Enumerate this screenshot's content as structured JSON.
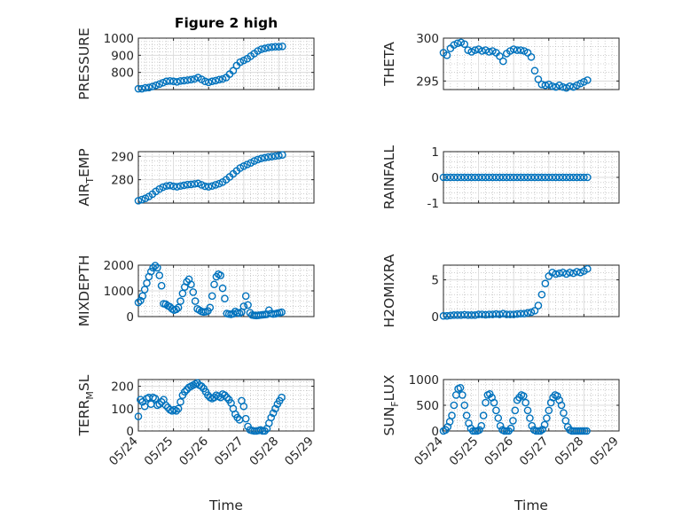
{
  "figure": {
    "title": "Figure 2 high",
    "marker_color": "#0072BD",
    "axis_color": "#262626",
    "grid": true,
    "minor_grid": true
  },
  "x_axis": {
    "label": "Time",
    "range": [
      "05/24",
      "05/29"
    ],
    "tick_labels": [
      "05/24",
      "05/25",
      "05/26",
      "05/27",
      "05/28",
      "05/29"
    ]
  },
  "chart_data": [
    {
      "type": "scatter",
      "ylabel": "PRESSURE",
      "title": "Figure 2 high",
      "ylim": [
        700,
        1000
      ],
      "yticks": [
        800,
        900,
        1000
      ],
      "x": [
        0.0,
        0.1,
        0.2,
        0.3,
        0.4,
        0.5,
        0.6,
        0.7,
        0.8,
        0.9,
        1.0,
        1.1,
        1.2,
        1.3,
        1.4,
        1.5,
        1.6,
        1.7,
        1.8,
        1.9,
        2.0,
        2.1,
        2.2,
        2.3,
        2.4,
        2.5,
        2.6,
        2.7,
        2.8,
        2.9,
        3.0,
        3.1,
        3.2,
        3.3,
        3.4,
        3.5,
        3.6,
        3.7,
        3.8,
        3.9,
        4.0,
        4.1
      ],
      "y": [
        705,
        705,
        710,
        712,
        718,
        725,
        732,
        740,
        748,
        750,
        748,
        745,
        750,
        752,
        755,
        758,
        762,
        770,
        760,
        748,
        742,
        748,
        752,
        758,
        762,
        770,
        790,
        810,
        840,
        860,
        870,
        880,
        895,
        910,
        925,
        935,
        940,
        945,
        948,
        950,
        950,
        952
      ]
    },
    {
      "type": "scatter",
      "ylabel": "THETA",
      "ylim": [
        294,
        300
      ],
      "yticks": [
        295,
        300
      ],
      "x": [
        0.0,
        0.1,
        0.2,
        0.3,
        0.4,
        0.5,
        0.6,
        0.7,
        0.8,
        0.9,
        1.0,
        1.1,
        1.2,
        1.3,
        1.4,
        1.5,
        1.6,
        1.7,
        1.8,
        1.9,
        2.0,
        2.1,
        2.2,
        2.3,
        2.4,
        2.5,
        2.6,
        2.7,
        2.8,
        2.9,
        3.0,
        3.1,
        3.2,
        3.3,
        3.4,
        3.5,
        3.6,
        3.7,
        3.8,
        3.9,
        4.0,
        4.1
      ],
      "y": [
        298.3,
        298.0,
        298.8,
        299.2,
        299.4,
        299.5,
        299.3,
        298.6,
        298.4,
        298.6,
        298.7,
        298.5,
        298.6,
        298.4,
        298.5,
        298.3,
        297.9,
        297.3,
        298.2,
        298.5,
        298.7,
        298.6,
        298.6,
        298.5,
        298.3,
        297.8,
        296.2,
        295.2,
        294.6,
        294.5,
        294.6,
        294.4,
        294.3,
        294.5,
        294.3,
        294.2,
        294.4,
        294.3,
        294.5,
        294.7,
        294.9,
        295.1
      ]
    },
    {
      "type": "scatter",
      "ylabel": "AIR_TEMP",
      "ylim": [
        270,
        292
      ],
      "yticks": [
        280,
        290
      ],
      "x": [
        0.0,
        0.1,
        0.2,
        0.3,
        0.4,
        0.5,
        0.6,
        0.7,
        0.8,
        0.9,
        1.0,
        1.1,
        1.2,
        1.3,
        1.4,
        1.5,
        1.6,
        1.7,
        1.8,
        1.9,
        2.0,
        2.1,
        2.2,
        2.3,
        2.4,
        2.5,
        2.6,
        2.7,
        2.8,
        2.9,
        3.0,
        3.1,
        3.2,
        3.3,
        3.4,
        3.5,
        3.6,
        3.7,
        3.8,
        3.9,
        4.0,
        4.1
      ],
      "y": [
        271.0,
        271.5,
        272.0,
        272.8,
        273.8,
        275.0,
        276.0,
        276.8,
        277.3,
        277.5,
        277.2,
        277.0,
        277.3,
        277.6,
        277.9,
        278.0,
        278.2,
        278.4,
        277.8,
        277.2,
        277.0,
        277.3,
        277.8,
        278.3,
        279.0,
        280.0,
        281.2,
        282.5,
        283.8,
        285.0,
        285.8,
        286.5,
        287.2,
        288.0,
        288.6,
        289.1,
        289.4,
        289.7,
        289.9,
        290.1,
        290.3,
        290.6
      ]
    },
    {
      "type": "scatter",
      "ylabel": "RAINFALL",
      "ylim": [
        -1,
        1
      ],
      "yticks": [
        -1,
        0,
        1
      ],
      "x": [
        0.0,
        0.1,
        0.2,
        0.3,
        0.4,
        0.5,
        0.6,
        0.7,
        0.8,
        0.9,
        1.0,
        1.1,
        1.2,
        1.3,
        1.4,
        1.5,
        1.6,
        1.7,
        1.8,
        1.9,
        2.0,
        2.1,
        2.2,
        2.3,
        2.4,
        2.5,
        2.6,
        2.7,
        2.8,
        2.9,
        3.0,
        3.1,
        3.2,
        3.3,
        3.4,
        3.5,
        3.6,
        3.7,
        3.8,
        3.9,
        4.0,
        4.1
      ],
      "y": [
        0,
        0,
        0,
        0,
        0,
        0,
        0,
        0,
        0,
        0,
        0,
        0,
        0,
        0,
        0,
        0,
        0,
        0,
        0,
        0,
        0,
        0,
        0,
        0,
        0,
        0,
        0,
        0,
        0,
        0,
        0,
        0,
        0,
        0,
        0,
        0,
        0,
        0,
        0,
        0,
        0,
        0
      ]
    },
    {
      "type": "scatter",
      "ylabel": "MIXDEPTH",
      "ylim": [
        0,
        2000
      ],
      "yticks": [
        0,
        1000,
        2000
      ],
      "x": [
        0.0,
        0.06,
        0.12,
        0.18,
        0.24,
        0.3,
        0.36,
        0.42,
        0.48,
        0.54,
        0.6,
        0.66,
        0.72,
        0.78,
        0.84,
        0.9,
        0.96,
        1.02,
        1.08,
        1.14,
        1.2,
        1.26,
        1.32,
        1.38,
        1.44,
        1.5,
        1.56,
        1.62,
        1.68,
        1.74,
        1.8,
        1.86,
        1.92,
        1.98,
        2.04,
        2.1,
        2.16,
        2.22,
        2.28,
        2.34,
        2.4,
        2.46,
        2.52,
        2.58,
        2.64,
        2.7,
        2.76,
        2.82,
        2.88,
        2.94,
        3.0,
        3.06,
        3.12,
        3.18,
        3.24,
        3.3,
        3.36,
        3.42,
        3.48,
        3.54,
        3.6,
        3.66,
        3.72,
        3.78,
        3.84,
        3.9,
        3.96,
        4.02,
        4.08
      ],
      "y": [
        550,
        620,
        800,
        1050,
        1300,
        1550,
        1750,
        1900,
        1980,
        1900,
        1600,
        1200,
        500,
        480,
        420,
        380,
        300,
        250,
        280,
        350,
        600,
        900,
        1150,
        1350,
        1450,
        1250,
        950,
        600,
        300,
        250,
        200,
        180,
        190,
        220,
        350,
        800,
        1250,
        1550,
        1650,
        1600,
        1100,
        700,
        120,
        100,
        90,
        110,
        200,
        150,
        130,
        180,
        400,
        800,
        450,
        150,
        60,
        50,
        40,
        50,
        60,
        70,
        80,
        90,
        250,
        120,
        100,
        110,
        130,
        150,
        170
      ]
    },
    {
      "type": "scatter",
      "ylabel": "H2OMIXRA",
      "ylim": [
        0,
        7
      ],
      "yticks": [
        0,
        5
      ],
      "x": [
        0.0,
        0.1,
        0.2,
        0.3,
        0.4,
        0.5,
        0.6,
        0.7,
        0.8,
        0.9,
        1.0,
        1.1,
        1.2,
        1.3,
        1.4,
        1.5,
        1.6,
        1.7,
        1.8,
        1.9,
        2.0,
        2.1,
        2.2,
        2.3,
        2.4,
        2.5,
        2.6,
        2.7,
        2.8,
        2.9,
        3.0,
        3.1,
        3.2,
        3.3,
        3.4,
        3.5,
        3.6,
        3.7,
        3.8,
        3.9,
        4.0,
        4.1
      ],
      "y": [
        0.1,
        0.1,
        0.15,
        0.2,
        0.2,
        0.2,
        0.25,
        0.2,
        0.2,
        0.2,
        0.3,
        0.3,
        0.25,
        0.3,
        0.3,
        0.35,
        0.3,
        0.4,
        0.3,
        0.3,
        0.3,
        0.35,
        0.4,
        0.4,
        0.5,
        0.6,
        0.8,
        1.5,
        3.0,
        4.5,
        5.5,
        6.0,
        5.8,
        5.9,
        6.0,
        5.8,
        6.0,
        5.9,
        6.1,
        6.0,
        6.2,
        6.5
      ]
    },
    {
      "type": "scatter",
      "ylabel": "TERR_MSL",
      "ylim": [
        0,
        230
      ],
      "yticks": [
        0,
        100,
        200
      ],
      "x": [
        0.0,
        0.06,
        0.12,
        0.18,
        0.24,
        0.3,
        0.36,
        0.42,
        0.48,
        0.54,
        0.6,
        0.66,
        0.72,
        0.78,
        0.84,
        0.9,
        0.96,
        1.02,
        1.08,
        1.14,
        1.2,
        1.26,
        1.32,
        1.38,
        1.44,
        1.5,
        1.56,
        1.62,
        1.68,
        1.74,
        1.8,
        1.86,
        1.92,
        1.98,
        2.04,
        2.1,
        2.16,
        2.22,
        2.28,
        2.34,
        2.4,
        2.46,
        2.52,
        2.58,
        2.64,
        2.7,
        2.76,
        2.82,
        2.88,
        2.94,
        3.0,
        3.06,
        3.12,
        3.18,
        3.24,
        3.3,
        3.36,
        3.42,
        3.48,
        3.54,
        3.6,
        3.66,
        3.72,
        3.78,
        3.84,
        3.9,
        3.96,
        4.02,
        4.08
      ],
      "y": [
        65,
        140,
        130,
        110,
        145,
        150,
        120,
        150,
        145,
        115,
        120,
        130,
        140,
        115,
        105,
        95,
        90,
        95,
        90,
        100,
        130,
        160,
        175,
        185,
        195,
        200,
        205,
        210,
        215,
        205,
        200,
        190,
        175,
        160,
        150,
        145,
        150,
        160,
        155,
        150,
        165,
        160,
        150,
        140,
        125,
        100,
        75,
        60,
        50,
        135,
        110,
        55,
        20,
        5,
        2,
        0,
        0,
        2,
        5,
        0,
        0,
        10,
        35,
        60,
        80,
        100,
        120,
        135,
        150
      ]
    },
    {
      "type": "scatter",
      "ylabel": "SUN_FLUX",
      "ylim": [
        0,
        1000
      ],
      "yticks": [
        0,
        500,
        1000
      ],
      "x": [
        0.0,
        0.06,
        0.12,
        0.18,
        0.24,
        0.3,
        0.36,
        0.42,
        0.48,
        0.54,
        0.6,
        0.66,
        0.72,
        0.78,
        0.84,
        0.9,
        0.96,
        1.02,
        1.08,
        1.14,
        1.2,
        1.26,
        1.32,
        1.38,
        1.44,
        1.5,
        1.56,
        1.62,
        1.68,
        1.74,
        1.8,
        1.86,
        1.92,
        1.98,
        2.04,
        2.1,
        2.16,
        2.22,
        2.28,
        2.34,
        2.4,
        2.46,
        2.52,
        2.58,
        2.64,
        2.7,
        2.76,
        2.82,
        2.88,
        2.94,
        3.0,
        3.06,
        3.12,
        3.18,
        3.24,
        3.3,
        3.36,
        3.42,
        3.48,
        3.54,
        3.6,
        3.66,
        3.72,
        3.78,
        3.84,
        3.9,
        3.96,
        4.02,
        4.08
      ],
      "y": [
        0,
        20,
        80,
        180,
        300,
        500,
        700,
        820,
        840,
        700,
        500,
        300,
        150,
        50,
        0,
        0,
        0,
        20,
        100,
        300,
        550,
        700,
        720,
        650,
        550,
        400,
        250,
        100,
        20,
        0,
        0,
        0,
        50,
        200,
        400,
        600,
        650,
        700,
        680,
        550,
        400,
        250,
        100,
        20,
        0,
        0,
        0,
        30,
        120,
        250,
        400,
        550,
        650,
        700,
        680,
        600,
        500,
        350,
        200,
        80,
        20,
        0,
        0,
        0,
        0,
        0,
        0,
        0,
        0
      ]
    }
  ]
}
